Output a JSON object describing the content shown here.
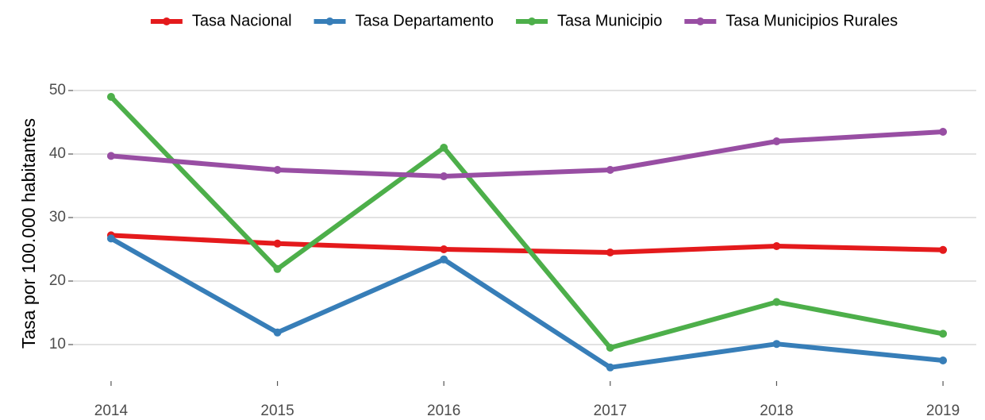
{
  "chart_data": {
    "type": "line",
    "y_label": "Tasa por 100.000 habitantes",
    "x": [
      2014,
      2015,
      2016,
      2017,
      2018,
      2019
    ],
    "xlim": [
      2013.8,
      2019.2
    ],
    "xticks": [
      2014,
      2015,
      2016,
      2017,
      2018,
      2019
    ],
    "ylim": [
      4.5,
      51.5
    ],
    "yticks": [
      10,
      20,
      30,
      40,
      50
    ],
    "grid": true,
    "legend": "top",
    "series": [
      {
        "name": "Tasa Nacional",
        "color": "#e41a1c",
        "values": [
          27.2,
          25.9,
          25.0,
          24.5,
          25.5,
          24.9
        ]
      },
      {
        "name": "Tasa Departamento",
        "color": "#377eb8",
        "values": [
          26.7,
          11.9,
          23.4,
          6.4,
          10.1,
          7.5
        ]
      },
      {
        "name": "Tasa Municipio",
        "color": "#4daf4a",
        "values": [
          49.0,
          21.9,
          41.0,
          9.5,
          16.7,
          11.7
        ]
      },
      {
        "name": "Tasa Municipios Rurales",
        "color": "#984ea3",
        "values": [
          39.7,
          37.5,
          36.5,
          37.5,
          42.0,
          43.5
        ]
      }
    ]
  }
}
